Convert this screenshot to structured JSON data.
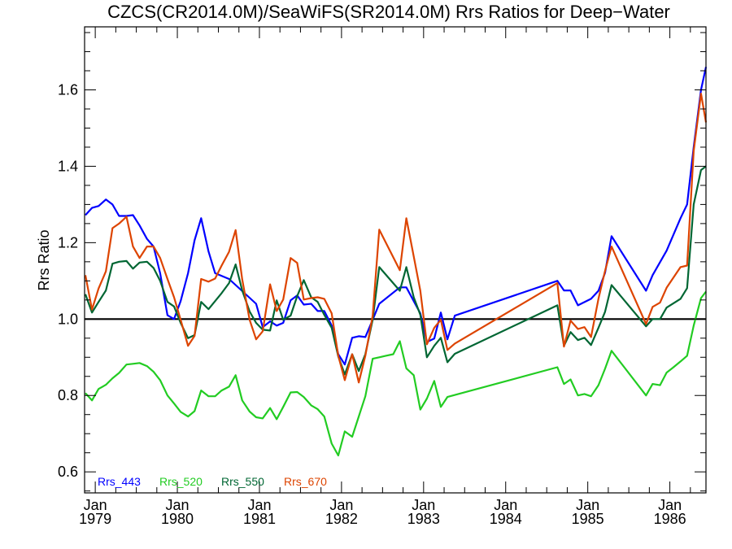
{
  "chart_data": {
    "type": "line",
    "title": "CZCS(CR2014.0M)/SeaWiFS(SR2014.0M)  Rrs Ratios for Deep−Water",
    "xlabel": "",
    "ylabel": "Rrs Ratio",
    "xlim": [
      1978.87,
      1986.44
    ],
    "ylim": [
      0.545,
      1.765
    ],
    "grid": false,
    "reference_line": 1.0,
    "legend_placement": "bottom-left",
    "x_ticks": [
      {
        "value": 1979,
        "line1": "Jan",
        "line2": "1979"
      },
      {
        "value": 1980,
        "line1": "Jan",
        "line2": "1980"
      },
      {
        "value": 1981,
        "line1": "Jan",
        "line2": "1981"
      },
      {
        "value": 1982,
        "line1": "Jan",
        "line2": "1982"
      },
      {
        "value": 1983,
        "line1": "Jan",
        "line2": "1983"
      },
      {
        "value": 1984,
        "line1": "Jan",
        "line2": "1984"
      },
      {
        "value": 1985,
        "line1": "Jan",
        "line2": "1985"
      },
      {
        "value": 1986,
        "line1": "Jan",
        "line2": "1986"
      }
    ],
    "y_ticks": [
      {
        "value": 0.6,
        "label": "0.6"
      },
      {
        "value": 0.8,
        "label": "0.8"
      },
      {
        "value": 1.0,
        "label": "1.0"
      },
      {
        "value": 1.2,
        "label": "1.2"
      },
      {
        "value": 1.4,
        "label": "1.4"
      },
      {
        "value": 1.6,
        "label": "1.6"
      }
    ],
    "series": [
      {
        "name": "Rrs_443",
        "color": "#0000ff",
        "points": [
          [
            1978.88,
            1.272
          ],
          [
            1978.96,
            1.291
          ],
          [
            1979.04,
            1.296
          ],
          [
            1979.13,
            1.313
          ],
          [
            1979.21,
            1.3
          ],
          [
            1979.29,
            1.27
          ],
          [
            1979.38,
            1.27
          ],
          [
            1979.46,
            1.272
          ],
          [
            1979.54,
            1.245
          ],
          [
            1979.63,
            1.21
          ],
          [
            1979.71,
            1.19
          ],
          [
            1979.79,
            1.12
          ],
          [
            1979.88,
            1.01
          ],
          [
            1979.96,
            1.0
          ],
          [
            1980.04,
            1.047
          ],
          [
            1980.13,
            1.12
          ],
          [
            1980.21,
            1.206
          ],
          [
            1980.29,
            1.264
          ],
          [
            1980.38,
            1.177
          ],
          [
            1980.46,
            1.12
          ],
          [
            1980.63,
            1.105
          ],
          [
            1980.96,
            1.04
          ],
          [
            1981.04,
            0.979
          ],
          [
            1981.13,
            0.994
          ],
          [
            1981.21,
            0.983
          ],
          [
            1981.29,
            0.99
          ],
          [
            1981.38,
            1.049
          ],
          [
            1981.46,
            1.062
          ],
          [
            1981.54,
            1.038
          ],
          [
            1981.63,
            1.04
          ],
          [
            1981.71,
            1.021
          ],
          [
            1981.79,
            1.021
          ],
          [
            1981.88,
            0.983
          ],
          [
            1981.96,
            0.908
          ],
          [
            1982.04,
            0.881
          ],
          [
            1982.13,
            0.951
          ],
          [
            1982.21,
            0.955
          ],
          [
            1982.29,
            0.953
          ],
          [
            1982.38,
            0.998
          ],
          [
            1982.46,
            1.04
          ],
          [
            1982.71,
            1.083
          ],
          [
            1982.79,
            1.083
          ],
          [
            1982.88,
            1.047
          ],
          [
            1982.96,
            1.015
          ],
          [
            1983.04,
            0.94
          ],
          [
            1983.13,
            0.949
          ],
          [
            1983.21,
            1.017
          ],
          [
            1983.29,
            0.947
          ],
          [
            1983.38,
            1.009
          ],
          [
            1984.63,
            1.1
          ],
          [
            1984.71,
            1.075
          ],
          [
            1984.79,
            1.075
          ],
          [
            1984.88,
            1.036
          ],
          [
            1985.04,
            1.053
          ],
          [
            1985.13,
            1.074
          ],
          [
            1985.21,
            1.121
          ],
          [
            1985.29,
            1.217
          ],
          [
            1985.71,
            1.074
          ],
          [
            1985.79,
            1.115
          ],
          [
            1985.96,
            1.179
          ],
          [
            1986.13,
            1.264
          ],
          [
            1986.21,
            1.3
          ],
          [
            1986.29,
            1.45
          ],
          [
            1986.38,
            1.6
          ],
          [
            1986.44,
            1.66
          ]
        ]
      },
      {
        "name": "Rrs_520",
        "color": "#22cc22",
        "points": [
          [
            1978.88,
            0.806
          ],
          [
            1978.96,
            0.787
          ],
          [
            1979.04,
            0.817
          ],
          [
            1979.13,
            0.828
          ],
          [
            1979.21,
            0.845
          ],
          [
            1979.29,
            0.859
          ],
          [
            1979.38,
            0.881
          ],
          [
            1979.46,
            0.883
          ],
          [
            1979.54,
            0.885
          ],
          [
            1979.63,
            0.877
          ],
          [
            1979.71,
            0.862
          ],
          [
            1979.79,
            0.84
          ],
          [
            1979.88,
            0.8
          ],
          [
            1979.96,
            0.779
          ],
          [
            1980.04,
            0.757
          ],
          [
            1980.13,
            0.745
          ],
          [
            1980.21,
            0.759
          ],
          [
            1980.29,
            0.813
          ],
          [
            1980.38,
            0.798
          ],
          [
            1980.46,
            0.798
          ],
          [
            1980.54,
            0.813
          ],
          [
            1980.63,
            0.823
          ],
          [
            1980.71,
            0.853
          ],
          [
            1980.79,
            0.787
          ],
          [
            1980.88,
            0.758
          ],
          [
            1980.96,
            0.743
          ],
          [
            1981.04,
            0.74
          ],
          [
            1981.13,
            0.767
          ],
          [
            1981.21,
            0.738
          ],
          [
            1981.29,
            0.77
          ],
          [
            1981.38,
            0.808
          ],
          [
            1981.46,
            0.809
          ],
          [
            1981.54,
            0.796
          ],
          [
            1981.63,
            0.774
          ],
          [
            1981.71,
            0.764
          ],
          [
            1981.79,
            0.745
          ],
          [
            1981.88,
            0.674
          ],
          [
            1981.96,
            0.643
          ],
          [
            1982.04,
            0.706
          ],
          [
            1982.13,
            0.692
          ],
          [
            1982.21,
            0.745
          ],
          [
            1982.29,
            0.798
          ],
          [
            1982.38,
            0.896
          ],
          [
            1982.46,
            0.9
          ],
          [
            1982.54,
            0.904
          ],
          [
            1982.63,
            0.908
          ],
          [
            1982.71,
            0.942
          ],
          [
            1982.79,
            0.871
          ],
          [
            1982.88,
            0.853
          ],
          [
            1982.96,
            0.763
          ],
          [
            1983.04,
            0.792
          ],
          [
            1983.13,
            0.838
          ],
          [
            1983.21,
            0.77
          ],
          [
            1983.29,
            0.796
          ],
          [
            1984.63,
            0.874
          ],
          [
            1984.71,
            0.83
          ],
          [
            1984.79,
            0.842
          ],
          [
            1984.88,
            0.8
          ],
          [
            1984.96,
            0.804
          ],
          [
            1985.04,
            0.798
          ],
          [
            1985.13,
            0.827
          ],
          [
            1985.21,
            0.87
          ],
          [
            1985.29,
            0.917
          ],
          [
            1985.71,
            0.8
          ],
          [
            1985.79,
            0.83
          ],
          [
            1985.88,
            0.827
          ],
          [
            1985.96,
            0.86
          ],
          [
            1986.04,
            0.873
          ],
          [
            1986.13,
            0.889
          ],
          [
            1986.21,
            0.904
          ],
          [
            1986.29,
            0.983
          ],
          [
            1986.38,
            1.055
          ],
          [
            1986.44,
            1.072
          ]
        ]
      },
      {
        "name": "Rrs_550",
        "color": "#006633",
        "points": [
          [
            1978.88,
            1.065
          ],
          [
            1978.96,
            1.017
          ],
          [
            1979.04,
            1.045
          ],
          [
            1979.13,
            1.075
          ],
          [
            1979.21,
            1.145
          ],
          [
            1979.29,
            1.15
          ],
          [
            1979.38,
            1.152
          ],
          [
            1979.46,
            1.132
          ],
          [
            1979.54,
            1.148
          ],
          [
            1979.63,
            1.15
          ],
          [
            1979.71,
            1.134
          ],
          [
            1979.79,
            1.1
          ],
          [
            1979.88,
            1.045
          ],
          [
            1979.96,
            1.033
          ],
          [
            1980.04,
            0.99
          ],
          [
            1980.13,
            0.95
          ],
          [
            1980.21,
            0.958
          ],
          [
            1980.29,
            1.045
          ],
          [
            1980.38,
            1.026
          ],
          [
            1980.46,
            1.047
          ],
          [
            1980.54,
            1.068
          ],
          [
            1980.63,
            1.094
          ],
          [
            1980.71,
            1.143
          ],
          [
            1980.79,
            1.075
          ],
          [
            1980.88,
            1.02
          ],
          [
            1980.96,
            0.99
          ],
          [
            1981.04,
            0.972
          ],
          [
            1981.13,
            0.97
          ],
          [
            1981.21,
            1.049
          ],
          [
            1981.29,
            0.998
          ],
          [
            1981.38,
            1.009
          ],
          [
            1981.46,
            1.06
          ],
          [
            1981.54,
            1.102
          ],
          [
            1981.63,
            1.057
          ],
          [
            1981.71,
            1.045
          ],
          [
            1981.79,
            1.011
          ],
          [
            1981.88,
            0.977
          ],
          [
            1981.96,
            0.902
          ],
          [
            1982.04,
            0.855
          ],
          [
            1982.13,
            0.908
          ],
          [
            1982.21,
            0.864
          ],
          [
            1982.29,
            0.908
          ],
          [
            1982.38,
            0.998
          ],
          [
            1982.46,
            1.136
          ],
          [
            1982.71,
            1.074
          ],
          [
            1982.79,
            1.136
          ],
          [
            1982.88,
            1.057
          ],
          [
            1982.96,
            1.011
          ],
          [
            1983.04,
            0.9
          ],
          [
            1983.13,
            0.93
          ],
          [
            1983.21,
            0.951
          ],
          [
            1983.29,
            0.887
          ],
          [
            1983.38,
            0.909
          ],
          [
            1984.63,
            1.036
          ],
          [
            1984.71,
            0.93
          ],
          [
            1984.79,
            0.966
          ],
          [
            1984.88,
            0.945
          ],
          [
            1984.96,
            0.951
          ],
          [
            1985.04,
            0.932
          ],
          [
            1985.13,
            0.977
          ],
          [
            1985.21,
            1.019
          ],
          [
            1985.29,
            1.089
          ],
          [
            1985.71,
            0.981
          ],
          [
            1985.79,
            1.0
          ],
          [
            1985.88,
            1.0
          ],
          [
            1985.96,
            1.03
          ],
          [
            1986.13,
            1.053
          ],
          [
            1986.21,
            1.081
          ],
          [
            1986.29,
            1.3
          ],
          [
            1986.38,
            1.39
          ],
          [
            1986.44,
            1.4
          ]
        ]
      },
      {
        "name": "Rrs_670",
        "color": "#dd4400",
        "points": [
          [
            1978.88,
            1.115
          ],
          [
            1978.96,
            1.025
          ],
          [
            1979.04,
            1.08
          ],
          [
            1979.13,
            1.125
          ],
          [
            1979.21,
            1.238
          ],
          [
            1979.29,
            1.25
          ],
          [
            1979.38,
            1.268
          ],
          [
            1979.46,
            1.19
          ],
          [
            1979.54,
            1.16
          ],
          [
            1979.63,
            1.19
          ],
          [
            1979.71,
            1.19
          ],
          [
            1979.79,
            1.16
          ],
          [
            1979.88,
            1.105
          ],
          [
            1979.96,
            1.057
          ],
          [
            1980.04,
            0.998
          ],
          [
            1980.13,
            0.93
          ],
          [
            1980.21,
            0.956
          ],
          [
            1980.29,
            1.105
          ],
          [
            1980.38,
            1.098
          ],
          [
            1980.46,
            1.106
          ],
          [
            1980.54,
            1.14
          ],
          [
            1980.63,
            1.176
          ],
          [
            1980.71,
            1.233
          ],
          [
            1980.79,
            1.104
          ],
          [
            1980.88,
            0.998
          ],
          [
            1980.96,
            0.947
          ],
          [
            1981.04,
            0.968
          ],
          [
            1981.13,
            1.091
          ],
          [
            1981.21,
            1.021
          ],
          [
            1981.29,
            1.051
          ],
          [
            1981.38,
            1.16
          ],
          [
            1981.46,
            1.147
          ],
          [
            1981.54,
            1.051
          ],
          [
            1981.63,
            1.055
          ],
          [
            1981.71,
            1.057
          ],
          [
            1981.79,
            1.053
          ],
          [
            1981.88,
            1.015
          ],
          [
            1981.96,
            0.904
          ],
          [
            1982.04,
            0.84
          ],
          [
            1982.13,
            0.908
          ],
          [
            1982.21,
            0.834
          ],
          [
            1982.29,
            0.904
          ],
          [
            1982.38,
            1.009
          ],
          [
            1982.46,
            1.234
          ],
          [
            1982.71,
            1.128
          ],
          [
            1982.79,
            1.264
          ],
          [
            1982.88,
            1.164
          ],
          [
            1982.96,
            1.074
          ],
          [
            1983.04,
            0.934
          ],
          [
            1983.13,
            0.977
          ],
          [
            1983.21,
            0.998
          ],
          [
            1983.29,
            0.919
          ],
          [
            1983.38,
            0.936
          ],
          [
            1984.63,
            1.094
          ],
          [
            1984.71,
            0.928
          ],
          [
            1984.79,
            0.996
          ],
          [
            1984.88,
            0.974
          ],
          [
            1984.96,
            0.979
          ],
          [
            1985.04,
            0.953
          ],
          [
            1985.13,
            1.053
          ],
          [
            1985.21,
            1.126
          ],
          [
            1985.29,
            1.19
          ],
          [
            1985.71,
            0.987
          ],
          [
            1985.79,
            1.032
          ],
          [
            1985.88,
            1.043
          ],
          [
            1985.96,
            1.082
          ],
          [
            1986.13,
            1.136
          ],
          [
            1986.21,
            1.14
          ],
          [
            1986.29,
            1.44
          ],
          [
            1986.38,
            1.59
          ],
          [
            1986.44,
            1.515
          ]
        ]
      }
    ]
  }
}
